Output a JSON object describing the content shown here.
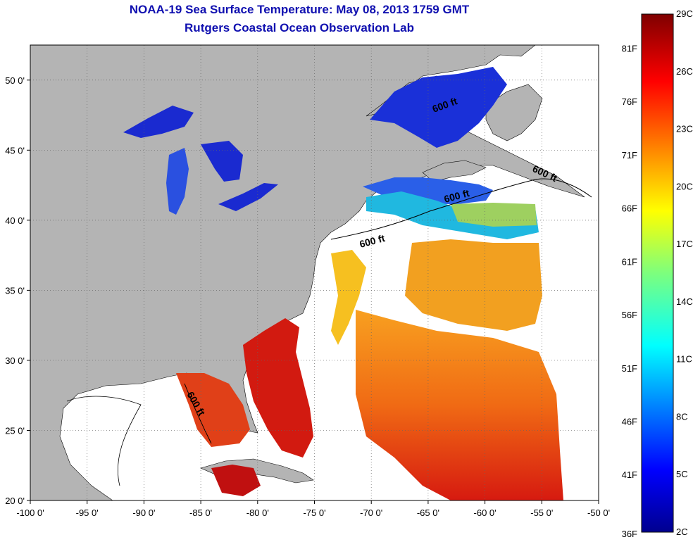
{
  "header": {
    "title": "NOAA-19 Sea Surface Temperature:  May 08, 2013 1759 GMT",
    "subtitle": "Rutgers Coastal Ocean Observation Lab"
  },
  "axes": {
    "x_ticks": [
      "-100 0'",
      "-95 0'",
      "-90 0'",
      "-85 0'",
      "-80 0'",
      "-75 0'",
      "-70 0'",
      "-65 0'",
      "-60 0'",
      "-55 0'",
      "-50 0'"
    ],
    "y_ticks": [
      "20 0'",
      "25 0'",
      "30 0'",
      "35 0'",
      "40 0'",
      "45 0'",
      "50 0'"
    ],
    "lon_range": [
      -100,
      -50
    ],
    "lat_range": [
      20,
      52.5
    ]
  },
  "colorbar": {
    "celsius": [
      "29C",
      "26C",
      "23C",
      "20C",
      "17C",
      "14C",
      "11C",
      "8C",
      "5C",
      "2C"
    ],
    "fahrenheit": [
      "81F",
      "76F",
      "71F",
      "66F",
      "61F",
      "56F",
      "51F",
      "46F",
      "41F",
      "36F"
    ],
    "range_c": [
      2,
      29
    ]
  },
  "contours": {
    "label": "600 ft"
  },
  "colors": {
    "land": "#b4b4b4",
    "title": "#1010b0",
    "cold": "#1a2ad0",
    "warm": "#d62a10"
  }
}
